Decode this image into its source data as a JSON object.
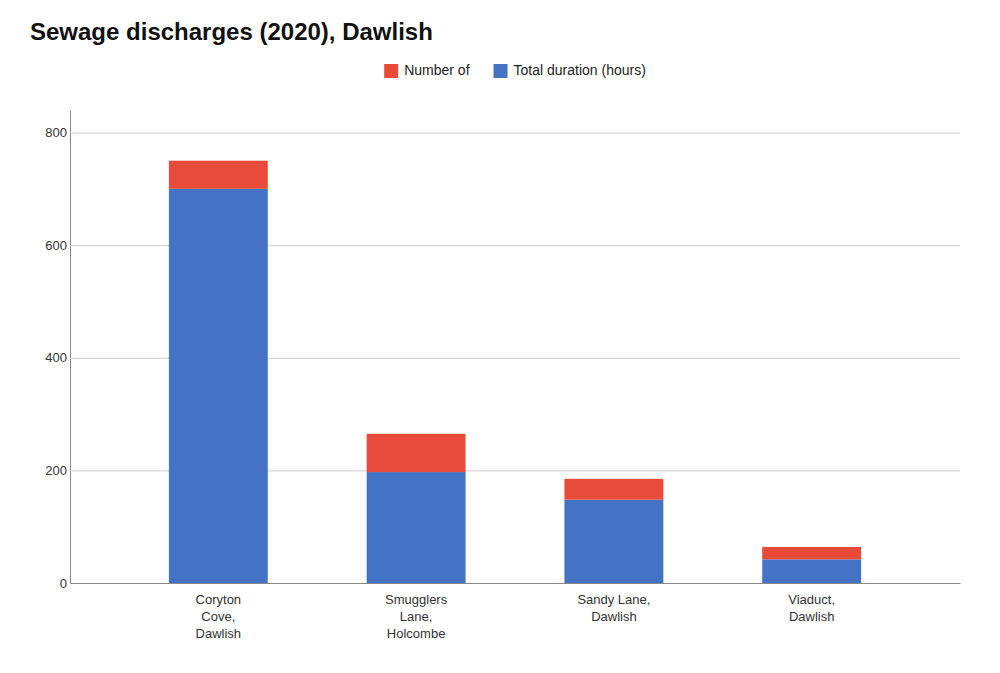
{
  "chart_data": {
    "type": "bar",
    "stacked": true,
    "title": "Sewage discharges (2020), Dawlish",
    "categories": [
      "Coryton\nCove,\nDawlish",
      "Smugglers\nLane,\nHolcombe",
      "Sandy Lane,\nDawlish",
      "Viaduct,\nDawlish"
    ],
    "series": [
      {
        "name": "Total duration (hours)",
        "color": "#4472C4",
        "values": [
          700,
          197,
          148,
          42
        ]
      },
      {
        "name": "Number of",
        "color": "#E84B3A",
        "values": [
          50,
          68,
          37,
          22
        ]
      }
    ],
    "ylim": [
      0,
      840
    ],
    "yticks": [
      0,
      200,
      400,
      600,
      800
    ],
    "grid": true,
    "legend": "top"
  }
}
